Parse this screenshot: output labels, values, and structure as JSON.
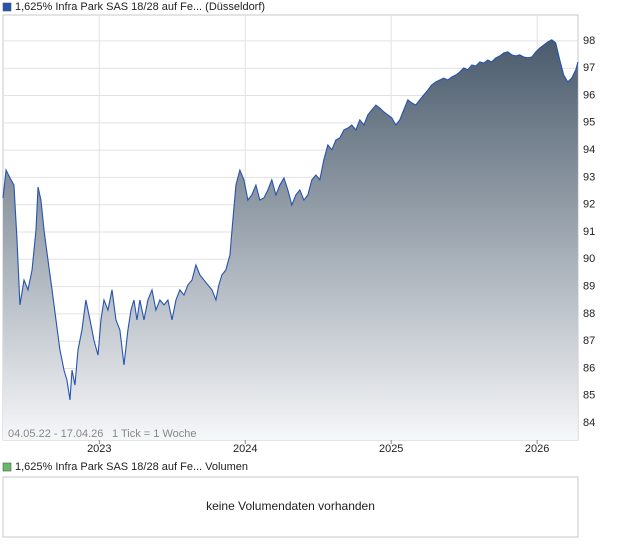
{
  "chart_data": [
    {
      "type": "area",
      "series": [
        {
          "name": "1,625% Infra Park SAS 18/28 auf Fe... (Düsseldorf)",
          "color": "#2653b0",
          "values": [
            92.25,
            93.27,
            92.98,
            92.72,
            90.71,
            88.33,
            89.24,
            88.88,
            89.61,
            91.07,
            92.65,
            92.17,
            91.07,
            89.98,
            88.88,
            87.78,
            86.68,
            85.94,
            85.58,
            84.85,
            85.94,
            85.39,
            86.68,
            87.41,
            88.51,
            87.78,
            87.04,
            86.49,
            87.78,
            88.51,
            88.14,
            88.88,
            87.78,
            87.41,
            86.13,
            87.41,
            88.14,
            88.51,
            87.78,
            88.51,
            87.78,
            88.51,
            88.88,
            88.14,
            88.51,
            88.33,
            88.51,
            87.78,
            88.51,
            88.88,
            88.69,
            89.06,
            89.24,
            89.79,
            89.43,
            89.24,
            89.06,
            88.88,
            88.51,
            89.06,
            89.43,
            89.61,
            90.16,
            91.44,
            92.72,
            93.27,
            92.91,
            92.17,
            92.36,
            92.72,
            92.17,
            92.25,
            92.54,
            92.91,
            92.36,
            92.72,
            92.98,
            92.54,
            91.99,
            92.36,
            92.54,
            92.17,
            92.36,
            92.91,
            93.09,
            92.91,
            93.64,
            94.19,
            94.01,
            94.37,
            94.45,
            94.74,
            94.81,
            94.92,
            94.74,
            95.11,
            94.92,
            95.29,
            95.47,
            95.65,
            95.54,
            95.4,
            95.29,
            95.18,
            94.92,
            95.11,
            95.47,
            95.84,
            95.73,
            95.65,
            95.84,
            96.02,
            96.2,
            96.39,
            96.5,
            96.57,
            96.64,
            96.57,
            96.68,
            96.75,
            96.86,
            97.01,
            96.94,
            97.12,
            97.08,
            97.23,
            97.19,
            97.3,
            97.23,
            97.38,
            97.45,
            97.56,
            97.6,
            97.49,
            97.45,
            97.49,
            97.41,
            97.38,
            97.41,
            97.6,
            97.74,
            97.85,
            97.96,
            98.04,
            97.93,
            97.3,
            96.75,
            96.5,
            96.64,
            96.94,
            97.23
          ]
        }
      ],
      "x": [
        2022.34,
        2022.361,
        2022.388,
        2022.415,
        2022.436,
        2022.456,
        2022.484,
        2022.511,
        2022.539,
        2022.566,
        2022.58,
        2022.6,
        2022.621,
        2022.648,
        2022.676,
        2022.703,
        2022.73,
        2022.758,
        2022.778,
        2022.799,
        2022.813,
        2022.833,
        2022.854,
        2022.881,
        2022.908,
        2022.936,
        2022.963,
        2022.991,
        2023.011,
        2023.032,
        2023.059,
        2023.087,
        2023.114,
        2023.141,
        2023.169,
        2023.196,
        2023.217,
        2023.237,
        2023.258,
        2023.278,
        2023.306,
        2023.333,
        2023.361,
        2023.388,
        2023.415,
        2023.443,
        2023.47,
        2023.498,
        2023.525,
        2023.552,
        2023.58,
        2023.607,
        2023.635,
        2023.662,
        2023.689,
        2023.717,
        2023.744,
        2023.772,
        2023.799,
        2023.819,
        2023.84,
        2023.867,
        2023.895,
        2023.915,
        2023.936,
        2023.963,
        2023.991,
        2024.018,
        2024.045,
        2024.073,
        2024.1,
        2024.128,
        2024.155,
        2024.182,
        2024.21,
        2024.237,
        2024.265,
        2024.292,
        2024.319,
        2024.347,
        2024.374,
        2024.402,
        2024.429,
        2024.456,
        2024.484,
        2024.511,
        2024.538,
        2024.566,
        2024.593,
        2024.621,
        2024.648,
        2024.676,
        2024.703,
        2024.73,
        2024.758,
        2024.785,
        2024.813,
        2024.84,
        2024.867,
        2024.895,
        2024.922,
        2024.95,
        2024.977,
        2025.004,
        2025.032,
        2025.059,
        2025.086,
        2025.114,
        2025.141,
        2025.168,
        2025.196,
        2025.223,
        2025.251,
        2025.278,
        2025.306,
        2025.333,
        2025.36,
        2025.388,
        2025.415,
        2025.443,
        2025.47,
        2025.497,
        2025.525,
        2025.552,
        2025.58,
        2025.607,
        2025.634,
        2025.662,
        2025.689,
        2025.717,
        2025.744,
        2025.772,
        2025.799,
        2025.826,
        2025.854,
        2025.881,
        2025.908,
        2025.936,
        2025.963,
        2025.991,
        2026.018,
        2026.045,
        2026.073,
        2026.1,
        2026.127,
        2026.155,
        2026.182,
        2026.21,
        2026.237,
        2026.265,
        2026.279
      ],
      "xlim": [
        2022.34,
        2026.28
      ],
      "xticks": [
        2023,
        2024,
        2025,
        2026
      ],
      "ylim": [
        83.38,
        98.95
      ],
      "yticks": [
        84,
        85,
        86,
        87,
        88,
        89,
        90,
        91,
        92,
        93,
        94,
        95,
        96,
        97,
        98
      ],
      "grid": true,
      "range": "04.05.22 - 17.04.26",
      "tick_note": "1 Tick = 1 Woche"
    },
    {
      "type": "volume",
      "series": [
        {
          "name": "1,625% Infra Park SAS 18/28 auf Fe... Volumen",
          "color": "#66bb66",
          "values": []
        }
      ],
      "note": "keine Volumendaten vorhanden"
    }
  ]
}
